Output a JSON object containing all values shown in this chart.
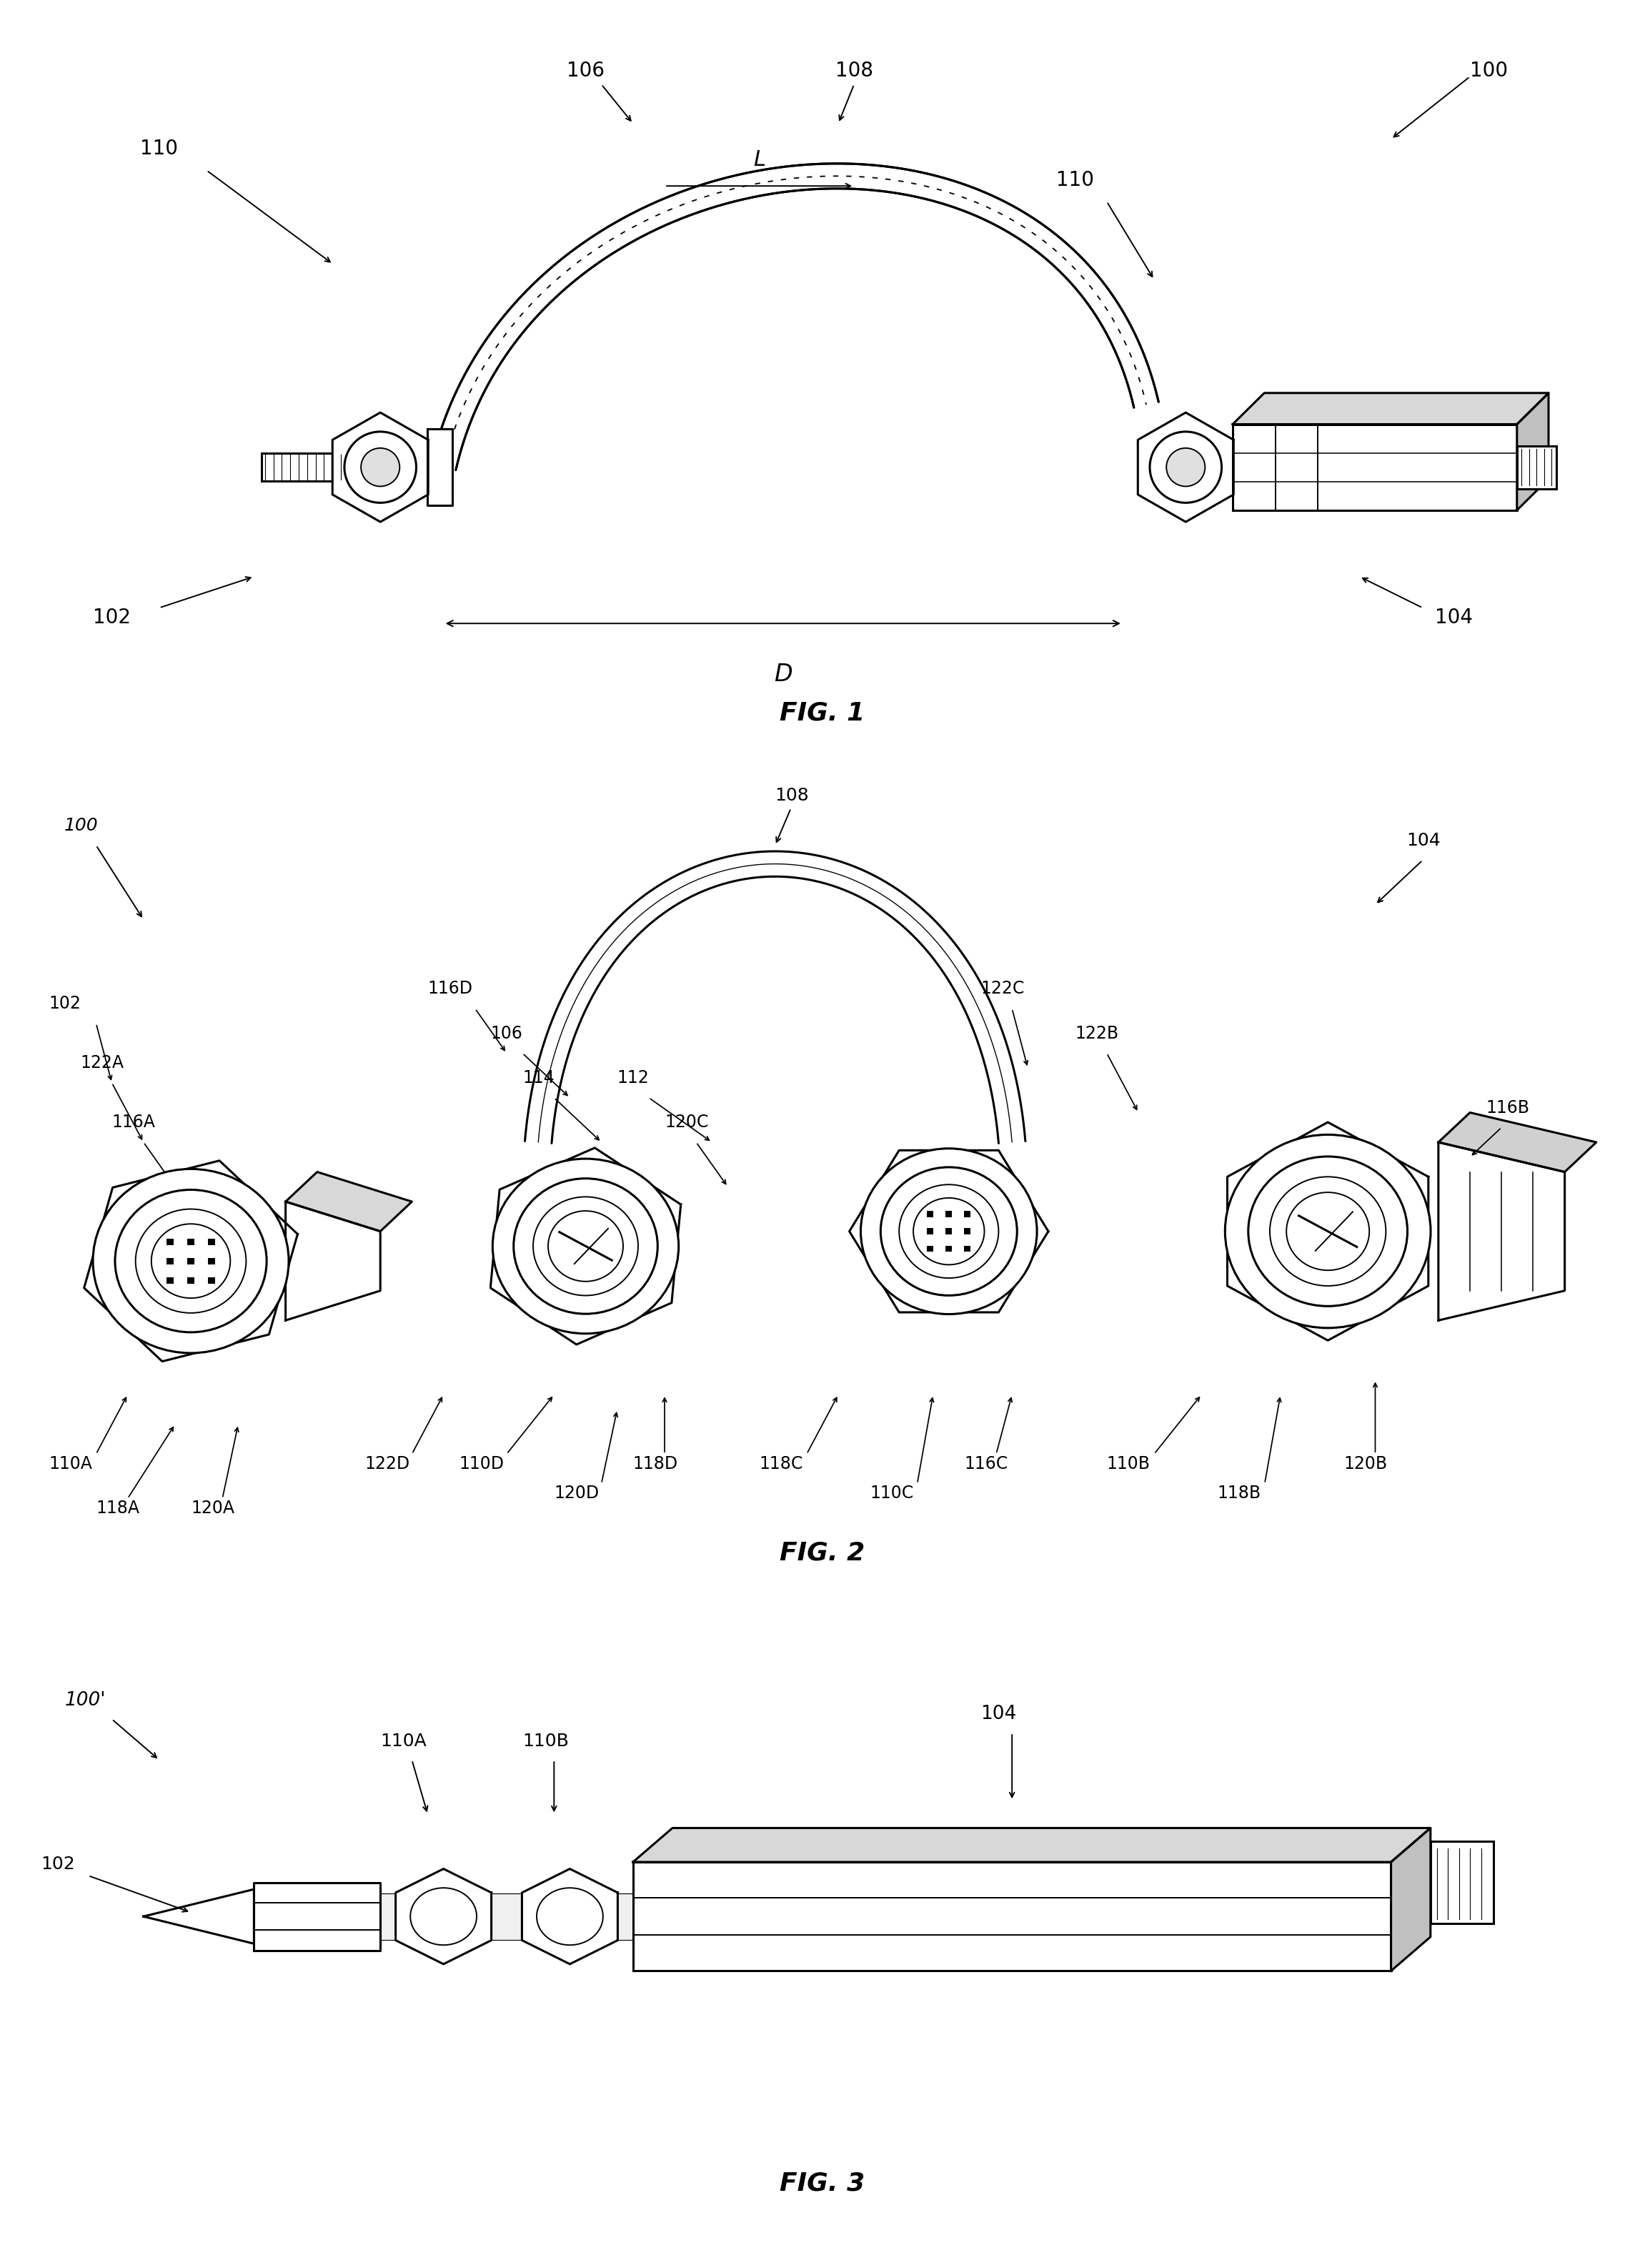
{
  "bg_color": "#ffffff",
  "line_color": "#000000",
  "fig_width": 23.02,
  "fig_height": 31.73,
  "fig1_title": "FIG. 1",
  "fig2_title": "FIG. 2",
  "fig3_title": "FIG. 3",
  "font_size_label": 20,
  "font_size_title": 26,
  "lw_main": 2.2,
  "lw_thin": 1.4,
  "lw_thick": 3.5
}
